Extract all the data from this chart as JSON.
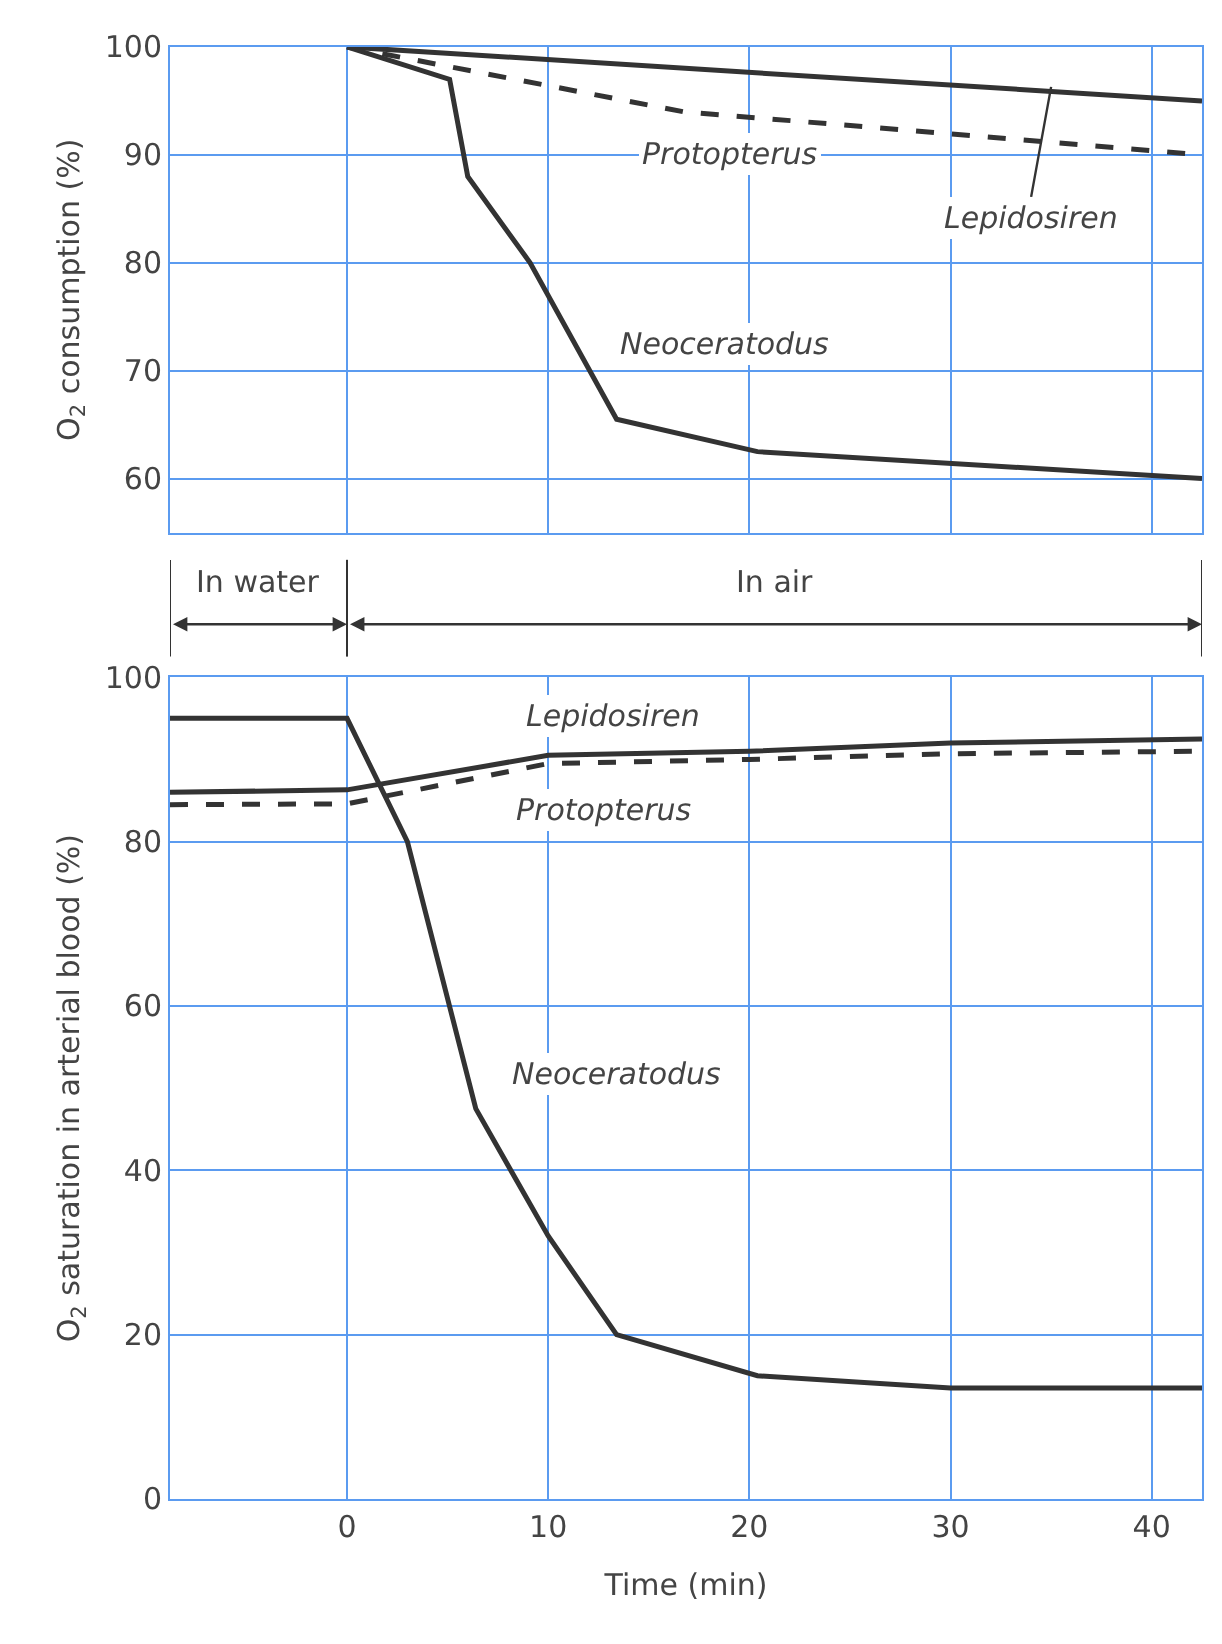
{
  "chart_data": [
    {
      "type": "line",
      "ylabel": "O$_{2}$ consumption (%)",
      "xlim": [
        -8.8,
        42.5
      ],
      "xticks": [
        0,
        10,
        20,
        30,
        40
      ],
      "ylim": [
        55,
        100
      ],
      "yticks": [
        60,
        70,
        80,
        90,
        100
      ],
      "grid": true,
      "tick_labels": "y",
      "marker": "none",
      "annotations": [
        "In water",
        "In air"
      ],
      "series": [
        {
          "name": "Lepidosiren",
          "color": "#333333",
          "line_style": "solid",
          "x": [
            0,
            42.5
          ],
          "values": [
            100,
            95
          ]
        },
        {
          "name": "Protopterus",
          "color": "#333333",
          "line_style": "dashed",
          "x": [
            0,
            16.7,
            42.5
          ],
          "values": [
            100,
            94,
            90
          ]
        },
        {
          "name": "Neoceratodus",
          "color": "#333333",
          "line_style": "solid",
          "x": [
            0,
            5.1,
            6,
            9.1,
            13.4,
            20.4,
            42.5
          ],
          "values": [
            100,
            97,
            88,
            80,
            65.5,
            62.5,
            60
          ]
        }
      ]
    },
    {
      "type": "line",
      "ylabel": "O$_{2}$ saturation in arterial blood (%)",
      "xlabel": "Time (min)",
      "xlim": [
        -8.8,
        42.5
      ],
      "xticks": [
        0,
        10,
        20,
        30,
        40
      ],
      "ylim": [
        0,
        100
      ],
      "yticks": [
        0,
        20,
        40,
        60,
        80,
        100
      ],
      "grid": true,
      "marker": "none",
      "series": [
        {
          "name": "Lepidosiren",
          "color": "#333333",
          "line_style": "solid",
          "x": [
            -8.8,
            0,
            10,
            20,
            30,
            42.5
          ],
          "values": [
            86,
            86.3,
            90.5,
            91,
            92,
            92.5
          ]
        },
        {
          "name": "Protopterus",
          "color": "#333333",
          "line_style": "dashed",
          "x": [
            -8.8,
            0,
            10,
            20,
            30,
            42.5
          ],
          "values": [
            84.5,
            84.6,
            89.5,
            90,
            90.7,
            91
          ]
        },
        {
          "name": "Neoceratodus",
          "color": "#333333",
          "line_style": "solid",
          "x": [
            -8.8,
            0,
            3,
            6.4,
            10,
            13.4,
            20.4,
            30,
            42.5
          ],
          "values": [
            95,
            95,
            80,
            47.5,
            32,
            20,
            15,
            13.5,
            13.5
          ]
        }
      ]
    }
  ]
}
